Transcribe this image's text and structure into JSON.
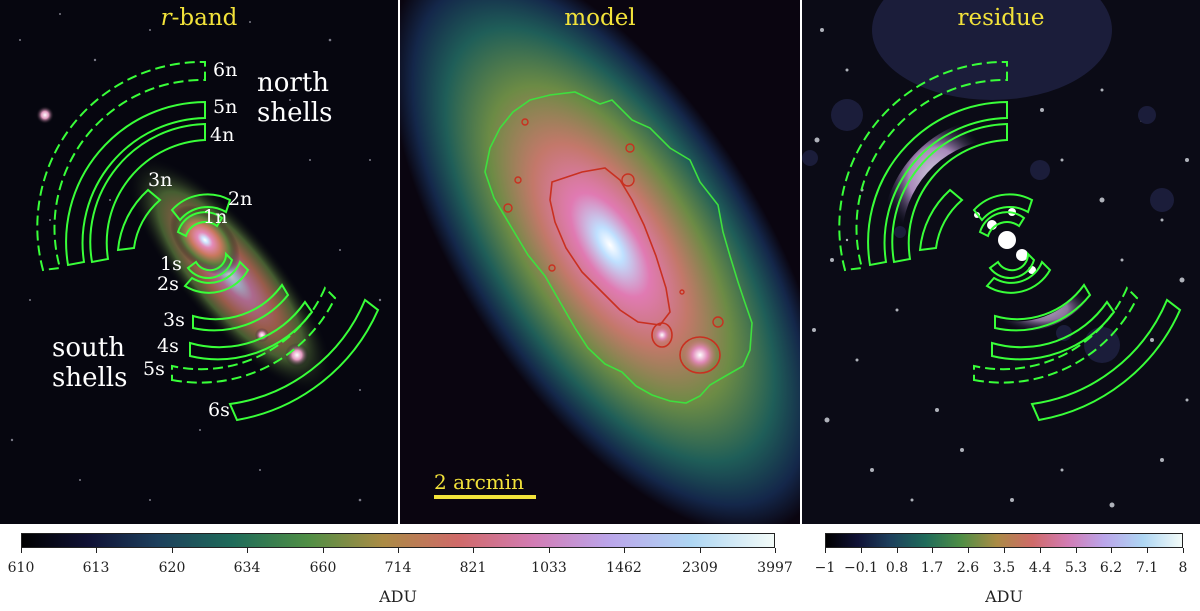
{
  "panels": {
    "left": {
      "title_prefix": "r",
      "title_suffix": "-band",
      "shell_labels": [
        "6n",
        "5n",
        "4n",
        "3n",
        "2n",
        "1n",
        "1s",
        "2s",
        "3s",
        "4s",
        "5s",
        "6s"
      ],
      "north_label_1": "north",
      "north_label_2": "shells",
      "south_label_1": "south",
      "south_label_2": "shells"
    },
    "middle": {
      "title": "model",
      "scalebar": "2 arcmin"
    },
    "right": {
      "title": "residue"
    }
  },
  "colorbars": {
    "left": {
      "ticks": [
        "610",
        "613",
        "620",
        "634",
        "660",
        "714",
        "821",
        "1033",
        "1462",
        "2309",
        "3997"
      ],
      "unit": "ADU"
    },
    "right": {
      "ticks": [
        "−1",
        "−0.1",
        "0.8",
        "1.7",
        "2.6",
        "3.5",
        "4.4",
        "5.3",
        "6.2",
        "7.1",
        "8"
      ],
      "unit": "ADU"
    }
  },
  "colors": {
    "title": "#f2e23a",
    "shell_outline": "#39ff39",
    "model_contour_green": "#3ee03e",
    "model_contour_red": "#c93020"
  }
}
